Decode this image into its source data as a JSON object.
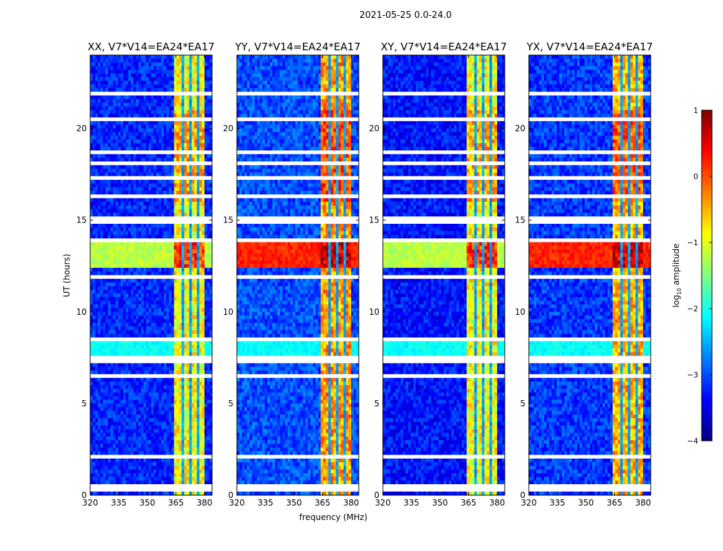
{
  "chart_data": {
    "type": "heatmap",
    "title": "2021-05-25 0.0-24.0",
    "xlabel": "frequency (MHz)",
    "ylabel": "UT (hours)",
    "xlim": [
      320,
      384
    ],
    "ylim": [
      0,
      24
    ],
    "xticks": [
      "320",
      "335",
      "350",
      "365",
      "380"
    ],
    "xtick_values": [
      320,
      335,
      350,
      365,
      380
    ],
    "yticks": [
      "0",
      "5",
      "10",
      "15",
      "20"
    ],
    "ytick_values": [
      0,
      5,
      10,
      15,
      20
    ],
    "colorbar": {
      "label": "log10 amplitude",
      "label_main": "log",
      "label_sub": "10",
      "label_rest": " amplitude",
      "range": [
        -4,
        1
      ],
      "ticks": [
        "1",
        "0",
        "−1",
        "−2",
        "−3",
        "−4"
      ],
      "tick_values": [
        1,
        0,
        -1,
        -2,
        -3,
        -4
      ],
      "colormap": "jet"
    },
    "band_MHz": [
      364,
      380
    ],
    "band_gaps_MHz": [
      368.5,
      372.5,
      376.5
    ],
    "flagged_hours": [
      0.3,
      0.55,
      2.0,
      2.2,
      6.5,
      7.4,
      8.5,
      11.8,
      13.9,
      15.0,
      16.3,
      17.3,
      18.1,
      18.6,
      20.5,
      21.9
    ],
    "strong_rows_hours": [
      [
        12.4,
        13.9
      ]
    ],
    "elevated_rows_hours": [
      [
        7.6,
        8.6
      ]
    ],
    "panels": [
      {
        "title": "XX, V7*V14=EA24*EA17",
        "background_level": -3.2,
        "band_level": -0.9
      },
      {
        "title": "YY, V7*V14=EA24*EA17",
        "background_level": -3.0,
        "band_level": -0.4
      },
      {
        "title": "XY, V7*V14=EA24*EA17",
        "background_level": -3.3,
        "band_level": -0.9
      },
      {
        "title": "YX, V7*V14=EA24*EA17",
        "background_level": -3.1,
        "band_level": -0.5
      }
    ]
  }
}
